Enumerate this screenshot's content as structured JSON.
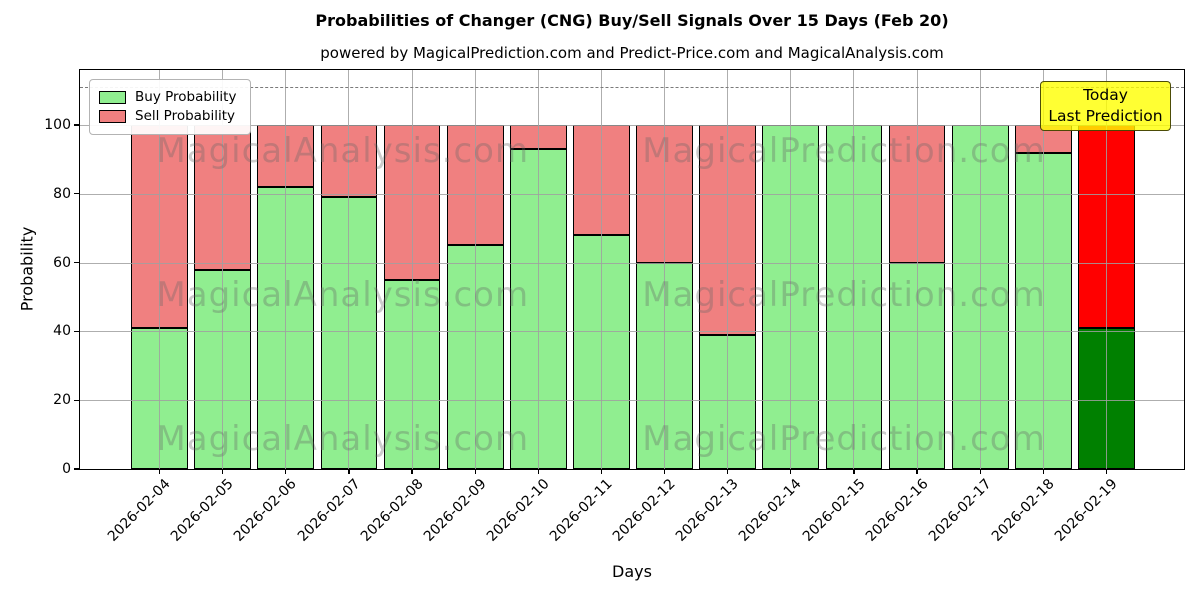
{
  "title": "Probabilities of Changer (CNG) Buy/Sell Signals Over 15 Days (Feb 20)",
  "subtitle": "powered by MagicalPrediction.com and Predict-Price.com and MagicalAnalysis.com",
  "annotation": {
    "lines": [
      "Today",
      "Last Prediction"
    ],
    "background": "#FFFF00"
  },
  "watermarks": [
    "MagicalAnalysis.com",
    "MagicalPrediction.com"
  ],
  "chart_data": {
    "type": "bar",
    "stacked": true,
    "title": "Probabilities of Changer (CNG) Buy/Sell Signals Over 15 Days (Feb 20)",
    "xlabel": "Days",
    "ylabel": "Probability",
    "categories": [
      "2026-02-04",
      "2026-02-05",
      "2026-02-06",
      "2026-02-07",
      "2026-02-08",
      "2026-02-09",
      "2026-02-10",
      "2026-02-11",
      "2026-02-12",
      "2026-02-13",
      "2026-02-14",
      "2026-02-15",
      "2026-02-16",
      "2026-02-17",
      "2026-02-18",
      "2026-02-19"
    ],
    "series": [
      {
        "name": "Buy Probability",
        "color": "#90EE90",
        "today_color": "#008000",
        "values": [
          41,
          58,
          82,
          79,
          55,
          65,
          93,
          68,
          60,
          39,
          100,
          100,
          60,
          100,
          92,
          41
        ]
      },
      {
        "name": "Sell Probability",
        "color": "#F08080",
        "today_color": "#FF0000",
        "values": [
          59,
          42,
          18,
          21,
          45,
          35,
          7,
          32,
          40,
          61,
          0,
          0,
          40,
          0,
          8,
          59
        ]
      }
    ],
    "yticks": [
      0,
      20,
      40,
      60,
      80,
      100
    ],
    "ylim": [
      0,
      116
    ],
    "dashed_line_y": 111,
    "grid": true,
    "legend_position": "upper left",
    "bar_edge_color": "#000000",
    "grid_color": "#a0a0a0"
  }
}
